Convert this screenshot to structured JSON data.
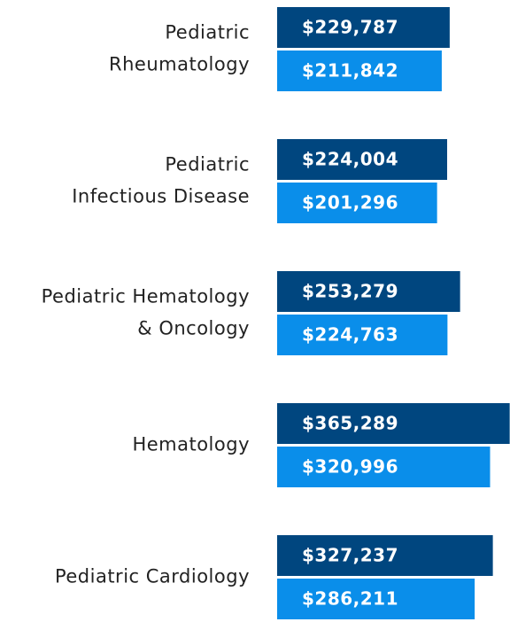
{
  "chart_data": {
    "type": "bar",
    "orientation": "horizontal",
    "categories": [
      [
        "Pediatric",
        "Rheumatology"
      ],
      [
        "Pediatric",
        "Infectious Disease"
      ],
      [
        "Pediatric Hematology",
        "& Oncology"
      ],
      [
        "Hematology"
      ],
      [
        "Pediatric Cardiology"
      ]
    ],
    "series": [
      {
        "color": "#00467f",
        "values": [
          229787,
          224004,
          253279,
          365289,
          327237
        ],
        "value_labels": [
          "$229,787",
          "$224,004",
          "$253,279",
          "$365,289",
          "$327,237"
        ]
      },
      {
        "color": "#0a8eea",
        "values": [
          211842,
          201296,
          224763,
          320996,
          286211
        ],
        "value_labels": [
          "$211,842",
          "$201,296",
          "$224,763",
          "$320,996",
          "$286,211"
        ]
      }
    ],
    "xlim": [
      -160000,
      366000
    ]
  }
}
